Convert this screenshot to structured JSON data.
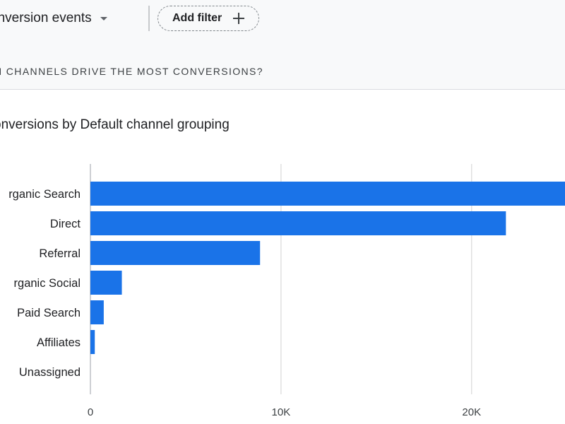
{
  "toolbar": {
    "filter_label": "onversion events",
    "add_filter_label": "Add filter"
  },
  "section": {
    "question": "H CHANNELS DRIVE THE MOST CONVERSIONS?"
  },
  "chart_data": {
    "type": "bar",
    "orientation": "horizontal",
    "title": "onversions by Default channel grouping",
    "categories": [
      "rganic Search",
      "Direct",
      "Referral",
      "rganic Social",
      "Paid Search",
      "Affiliates",
      "Unassigned"
    ],
    "values": [
      25500,
      21800,
      8900,
      1650,
      700,
      230,
      0
    ],
    "xlim": [
      0,
      24900
    ],
    "xticks": [
      0,
      10000,
      20000
    ],
    "xtick_labels": [
      "0",
      "10K",
      "20K"
    ],
    "grid": true,
    "bar_color": "#1a73e8"
  }
}
